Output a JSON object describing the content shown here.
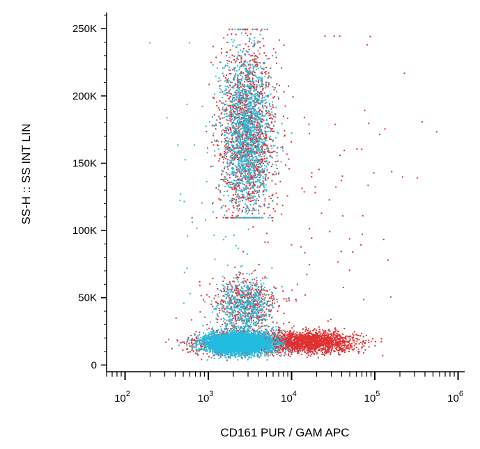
{
  "chart_data": {
    "type": "scatter",
    "xlabel": "CD161 PUR / GAM APC",
    "ylabel": "SS-H :: SS INT LIN",
    "x_scale": "log",
    "xlim": [
      60,
      1200000
    ],
    "ylim": [
      -5000,
      262000
    ],
    "x_ticks": [
      {
        "value": 100,
        "base": "10",
        "exp": "2"
      },
      {
        "value": 1000,
        "base": "10",
        "exp": "3"
      },
      {
        "value": 10000,
        "base": "10",
        "exp": "4"
      },
      {
        "value": 100000,
        "base": "10",
        "exp": "5"
      },
      {
        "value": 1000000,
        "base": "10",
        "exp": "6"
      }
    ],
    "y_ticks": [
      {
        "value": 0,
        "label": "0"
      },
      {
        "value": 50000,
        "label": "50K"
      },
      {
        "value": 100000,
        "label": "100K"
      },
      {
        "value": 150000,
        "label": "150K"
      },
      {
        "value": 200000,
        "label": "200K"
      },
      {
        "value": 250000,
        "label": "250K"
      }
    ],
    "grid": false,
    "legend": "none",
    "series": [
      {
        "color": "#e03030",
        "clusters": [
          {
            "x_center": 2900,
            "x_log_sd": 0.17,
            "y_center": 175000,
            "y_sd": 32000,
            "y_min": 110000,
            "y_max": 250000,
            "points": 1500
          },
          {
            "x_center": 2700,
            "x_log_sd": 0.2,
            "y_center": 45000,
            "y_sd": 11000,
            "y_min": 22000,
            "y_max": 95000,
            "points": 500
          },
          {
            "x_center": 2200,
            "x_log_sd": 0.26,
            "y_center": 17000,
            "y_sd": 4200,
            "y_min": 4000,
            "y_max": 32000,
            "points": 1200
          },
          {
            "x_center": 16000,
            "x_log_sd": 0.28,
            "y_center": 17500,
            "y_sd": 3800,
            "y_min": 6000,
            "y_max": 30000,
            "points": 1700
          },
          {
            "x_center": 20000,
            "x_log_sd": 0.55,
            "y_center": 110000,
            "y_sd": 70000,
            "y_min": 20000,
            "y_max": 245000,
            "points": 110
          }
        ]
      },
      {
        "color": "#22bde0",
        "clusters": [
          {
            "x_center": 2800,
            "x_log_sd": 0.15,
            "y_center": 172000,
            "y_sd": 30000,
            "y_min": 110000,
            "y_max": 250000,
            "points": 1400
          },
          {
            "x_center": 2700,
            "x_log_sd": 0.17,
            "y_center": 43000,
            "y_sd": 10500,
            "y_min": 22000,
            "y_max": 95000,
            "points": 550
          },
          {
            "x_center": 2200,
            "x_log_sd": 0.2,
            "y_center": 16500,
            "y_sd": 3800,
            "y_min": 4000,
            "y_max": 30000,
            "points": 4200
          },
          {
            "x_center": 1400,
            "x_log_sd": 0.35,
            "y_center": 130000,
            "y_sd": 60000,
            "y_min": 20000,
            "y_max": 240000,
            "points": 70
          }
        ]
      }
    ]
  }
}
